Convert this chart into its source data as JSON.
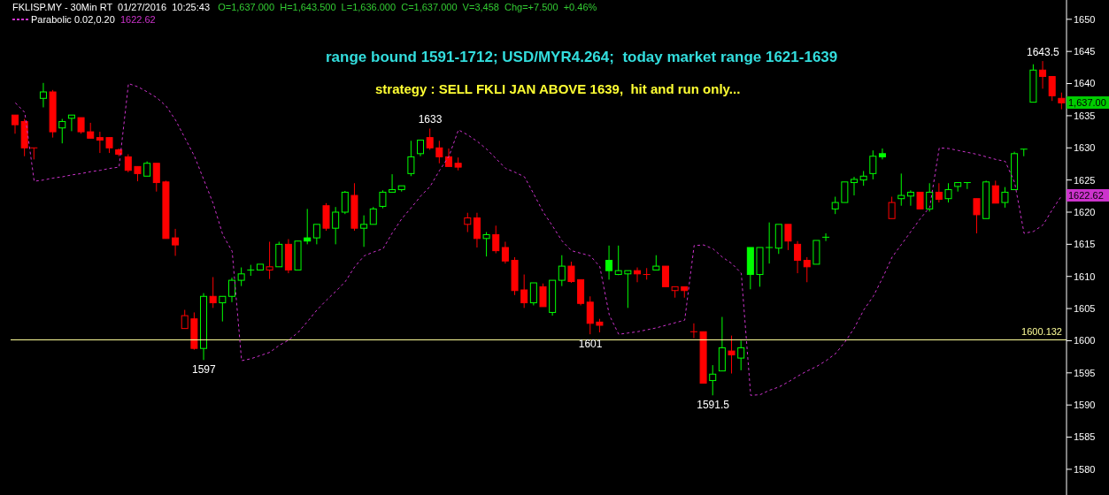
{
  "chart_data": {
    "type": "candlestick",
    "title": "FKLISP.MY - 30Min RT  01/27/2016  10:25:43",
    "subtitle": "O=1,637.000  H=1,643.500  L=1,636.000  C=1,637.000  V=3,458  Chg=+7.500  +0.46%",
    "categories": [
      null,
      null,
      null,
      null,
      null,
      null,
      null,
      null,
      null,
      null,
      null,
      null,
      null,
      null,
      null,
      null,
      null,
      null,
      null,
      null,
      null,
      null,
      null,
      null,
      null,
      null,
      null,
      null,
      null,
      null,
      null,
      null,
      null,
      null,
      null,
      null,
      null,
      null,
      null,
      null,
      null,
      null,
      null,
      null,
      null,
      null,
      null,
      null,
      null,
      null,
      null,
      null,
      null,
      null,
      null,
      null,
      null,
      null,
      null,
      null,
      null,
      null,
      null,
      null,
      null,
      null,
      null,
      null,
      null,
      null,
      null,
      null,
      null,
      null,
      null,
      null,
      null,
      null,
      null,
      null,
      null,
      null,
      null,
      null,
      null,
      null,
      null,
      null,
      null,
      null,
      null,
      null,
      null,
      null,
      null,
      null,
      null,
      null,
      null,
      null,
      null,
      null,
      null,
      null,
      null,
      null,
      null,
      null,
      null,
      null,
      null,
      null
    ],
    "ohlc": [
      [
        1635.1,
        1635.1,
        1632.2,
        1633.6
      ],
      [
        1634.1,
        1634.5,
        1628.7,
        1630.0
      ],
      [
        1630.0,
        1630.0,
        1628.2,
        1630.0
      ],
      [
        1637.7,
        1640.1,
        1636.3,
        1638.7
      ],
      [
        1638.7,
        1639.0,
        1631.6,
        1632.5
      ],
      [
        1633.1,
        1634.5,
        1630.7,
        1634.1
      ],
      [
        1634.6,
        1635.1,
        1632.6,
        1635.1
      ],
      [
        1634.7,
        1634.7,
        1632.2,
        1632.5
      ],
      [
        1632.5,
        1633.9,
        1631.5,
        1631.5
      ],
      [
        1631.6,
        1632.5,
        1629.2,
        1631.2
      ],
      [
        1631.6,
        1631.6,
        1629.2,
        1630.0
      ],
      [
        1629.7,
        1629.9,
        1628.7,
        1629.0
      ],
      [
        1628.6,
        1629.0,
        1626.2,
        1626.5
      ],
      [
        1627.1,
        1627.1,
        1624.8,
        1626.0
      ],
      [
        1625.6,
        1627.9,
        1625.6,
        1627.6
      ],
      [
        1627.6,
        1627.6,
        1623.2,
        1624.6
      ],
      [
        1624.7,
        1624.9,
        1615.9,
        1615.9
      ],
      [
        1616.0,
        1617.4,
        1613.2,
        1614.9
      ],
      [
        1601.9,
        1604.8,
        1601.9,
        1603.9
      ],
      [
        1603.4,
        1604.4,
        1598.6,
        1598.8
      ],
      [
        1598.8,
        1607.4,
        1597.0,
        1606.9
      ],
      [
        1606.9,
        1609.9,
        1605.1,
        1605.9
      ],
      [
        1605.9,
        1606.9,
        1603.0,
        1606.9
      ],
      [
        1606.9,
        1609.8,
        1606.0,
        1609.4
      ],
      [
        1609.4,
        1611.4,
        1608.5,
        1610.4
      ],
      [
        1611.0,
        1611.8,
        1610.1,
        1611.0
      ],
      [
        1611.0,
        1611.9,
        1611.0,
        1611.9
      ],
      [
        1611.0,
        1615.4,
        1609.6,
        1611.5
      ],
      [
        1611.5,
        1615.4,
        1611.5,
        1615.0
      ],
      [
        1615.0,
        1615.8,
        1610.5,
        1611.0
      ],
      [
        1611.0,
        1615.5,
        1611.0,
        1615.5
      ],
      [
        1616.0,
        1620.5,
        1615.0,
        1615.5
      ],
      [
        1616.0,
        1618.1,
        1615.0,
        1618.1
      ],
      [
        1621.0,
        1621.4,
        1617.1,
        1617.5
      ],
      [
        1617.5,
        1620.8,
        1615.0,
        1620.0
      ],
      [
        1620.0,
        1623.3,
        1619.7,
        1623.1
      ],
      [
        1622.6,
        1624.5,
        1617.1,
        1617.5
      ],
      [
        1617.5,
        1619.5,
        1614.6,
        1618.1
      ],
      [
        1618.1,
        1620.8,
        1618.1,
        1620.5
      ],
      [
        1620.9,
        1623.4,
        1620.6,
        1623.1
      ],
      [
        1623.1,
        1625.9,
        1623.1,
        1623.5
      ],
      [
        1623.5,
        1624.1,
        1623.2,
        1624.1
      ],
      [
        1626.0,
        1631.1,
        1625.6,
        1628.6
      ],
      [
        1629.1,
        1631.2,
        1628.7,
        1631.2
      ],
      [
        1631.6,
        1633.0,
        1629.7,
        1630.0
      ],
      [
        1630.0,
        1631.1,
        1627.6,
        1628.6
      ],
      [
        1628.6,
        1629.9,
        1627.1,
        1627.1
      ],
      [
        1627.6,
        1628.5,
        1626.5,
        1627.0
      ],
      [
        1618.1,
        1619.9,
        1616.9,
        1619.1
      ],
      [
        1619.1,
        1619.9,
        1614.5,
        1615.9
      ],
      [
        1615.9,
        1616.9,
        1613.1,
        1616.5
      ],
      [
        1616.5,
        1617.9,
        1613.6,
        1614.0
      ],
      [
        1614.5,
        1615.4,
        1612.0,
        1612.4
      ],
      [
        1612.5,
        1613.0,
        1607.1,
        1607.8
      ],
      [
        1607.9,
        1610.3,
        1605.1,
        1605.9
      ],
      [
        1605.9,
        1609.0,
        1605.5,
        1609.0
      ],
      [
        1608.4,
        1608.9,
        1605.3,
        1605.3
      ],
      [
        1604.4,
        1609.4,
        1603.9,
        1609.4
      ],
      [
        1609.4,
        1613.3,
        1608.5,
        1611.6
      ],
      [
        1611.6,
        1612.3,
        1609.0,
        1609.2
      ],
      [
        1609.5,
        1609.5,
        1605.5,
        1605.8
      ],
      [
        1606.0,
        1606.9,
        1601.0,
        1602.7
      ],
      [
        1602.9,
        1603.4,
        1601.3,
        1602.4
      ],
      [
        1612.5,
        1614.8,
        1609.5,
        1610.9
      ],
      [
        1610.3,
        1614.8,
        1610.2,
        1610.9
      ],
      [
        1610.4,
        1610.9,
        1605.1,
        1610.9
      ],
      [
        1610.9,
        1611.4,
        1609.1,
        1610.4
      ],
      [
        1610.3,
        1611.3,
        1609.5,
        1610.3
      ],
      [
        1611.0,
        1613.3,
        1611.0,
        1611.6
      ],
      [
        1611.6,
        1611.6,
        1608.4,
        1608.4
      ],
      [
        1607.8,
        1608.4,
        1606.7,
        1608.4
      ],
      [
        1608.4,
        1608.4,
        1606.7,
        1607.8
      ],
      [
        1601.4,
        1602.7,
        1600.4,
        1601.4
      ],
      [
        1601.4,
        1601.4,
        1593.4,
        1593.4
      ],
      [
        1593.8,
        1596.2,
        1591.5,
        1594.8
      ],
      [
        1595.3,
        1603.7,
        1595.3,
        1598.9
      ],
      [
        1598.4,
        1600.8,
        1594.9,
        1597.8
      ],
      [
        1597.3,
        1600.0,
        1595.4,
        1598.9
      ],
      [
        1614.5,
        1614.5,
        1608.0,
        1610.3
      ],
      [
        1610.3,
        1614.5,
        1608.4,
        1614.5
      ],
      [
        1614.5,
        1618.4,
        1612.0,
        1614.5
      ],
      [
        1614.4,
        1618.1,
        1613.5,
        1618.1
      ],
      [
        1618.1,
        1618.1,
        1614.1,
        1615.5
      ],
      [
        1615.0,
        1615.5,
        1610.5,
        1612.5
      ],
      [
        1612.5,
        1613.0,
        1609.1,
        1611.5
      ],
      [
        1611.9,
        1615.6,
        1611.9,
        1615.6
      ],
      [
        1616.1,
        1616.7,
        1615.5,
        1616.1
      ],
      [
        1620.5,
        1622.4,
        1619.7,
        1621.5
      ],
      [
        1621.5,
        1624.7,
        1621.5,
        1624.7
      ],
      [
        1624.6,
        1625.5,
        1622.6,
        1625.1
      ],
      [
        1625.0,
        1626.4,
        1624.1,
        1625.6
      ],
      [
        1626.0,
        1629.6,
        1625.1,
        1628.7
      ],
      [
        1629.1,
        1629.9,
        1628.2,
        1628.6
      ],
      [
        1619.0,
        1622.4,
        1619.0,
        1621.5
      ],
      [
        1622.1,
        1626.0,
        1621.0,
        1622.6
      ],
      [
        1622.5,
        1623.4,
        1621.0,
        1623.1
      ],
      [
        1623.1,
        1623.1,
        1620.5,
        1620.5
      ],
      [
        1620.5,
        1624.5,
        1620.1,
        1623.1
      ],
      [
        1623.1,
        1624.5,
        1621.5,
        1622.0
      ],
      [
        1622.1,
        1624.5,
        1621.5,
        1623.5
      ],
      [
        1624.0,
        1624.6,
        1623.2,
        1624.6
      ],
      [
        1624.6,
        1624.6,
        1623.6,
        1624.6
      ],
      [
        1622.1,
        1622.1,
        1616.7,
        1619.6
      ],
      [
        1619.0,
        1624.9,
        1619.0,
        1624.7
      ],
      [
        1624.1,
        1624.9,
        1621.4,
        1621.4
      ],
      [
        1621.5,
        1623.9,
        1620.7,
        1623.1
      ],
      [
        1623.5,
        1629.4,
        1623.5,
        1629.1
      ],
      [
        1629.8,
        1629.8,
        1628.7,
        1629.8
      ],
      [
        1637.1,
        1643.0,
        1637.1,
        1642.1
      ],
      [
        1642.1,
        1643.5,
        1639.2,
        1641.1
      ],
      [
        1641.1,
        1641.1,
        1637.3,
        1638.1
      ],
      [
        1637.7,
        1638.6,
        1636.0,
        1637.0
      ]
    ],
    "colors": [
      "#ff0000",
      "#ff0000",
      "#ff0000",
      "#00ff00",
      "#ff0000",
      "#00ff00",
      "#00ff00",
      "#ff0000",
      "#ff0000",
      "#ff0000",
      "#ff0000",
      "#ff0000",
      "#ff0000",
      "#ff0000",
      "#00ff00",
      "#ff0000",
      "#ff0000",
      "#ff0000",
      "#ff0000",
      "#ff0000",
      "#00ff00",
      "#ff0000",
      "#00ff00",
      "#00ff00",
      "#00ff00",
      "#00ff00",
      "#00ff00",
      "#ff0000",
      "#00ff00",
      "#ff0000",
      "#00ff00",
      "#00ff00",
      "#00ff00",
      "#ff0000",
      "#00ff00",
      "#00ff00",
      "#ff0000",
      "#00ff00",
      "#00ff00",
      "#00ff00",
      "#00ff00",
      "#00ff00",
      "#00ff00",
      "#00ff00",
      "#ff0000",
      "#ff0000",
      "#ff0000",
      "#ff0000",
      "#ff0000",
      "#ff0000",
      "#00ff00",
      "#ff0000",
      "#ff0000",
      "#ff0000",
      "#ff0000",
      "#00ff00",
      "#ff0000",
      "#00ff00",
      "#00ff00",
      "#ff0000",
      "#ff0000",
      "#ff0000",
      "#ff0000",
      "#00ff00",
      "#00ff00",
      "#00ff00",
      "#ff0000",
      "#ff0000",
      "#00ff00",
      "#ff0000",
      "#ff0000",
      "#ff0000",
      "#ff0000",
      "#ff0000",
      "#00ff00",
      "#00ff00",
      "#ff0000",
      "#00ff00",
      "#00ff00",
      "#00ff00",
      "#00ff00",
      "#00ff00",
      "#ff0000",
      "#ff0000",
      "#ff0000",
      "#00ff00",
      "#00ff00",
      "#00ff00",
      "#00ff00",
      "#00ff00",
      "#00ff00",
      "#00ff00",
      "#00ff00",
      "#ff0000",
      "#00ff00",
      "#00ff00",
      "#ff0000",
      "#00ff00",
      "#ff0000",
      "#00ff00",
      "#00ff00",
      "#00ff00",
      "#ff0000",
      "#00ff00",
      "#ff0000",
      "#00ff00",
      "#00ff00",
      "#00ff00",
      "#00ff00",
      "#ff0000",
      "#ff0000",
      "#ff0000"
    ],
    "series": [
      {
        "name": "Parabolic 0.02,0.20",
        "type": "line",
        "color": "#cc33cc",
        "line_style": "dashed",
        "marker": "none",
        "values": [
          1637.0,
          1635.5,
          1624.8,
          1625.0,
          1625.3,
          1625.5,
          1625.8,
          1626.0,
          1626.3,
          1626.5,
          1626.8,
          1627.0,
          1640.0,
          1639.5,
          1638.7,
          1637.8,
          1636.5,
          1634.3,
          1631.5,
          1628.7,
          1625.0,
          1621.3,
          1616.5,
          1613.9,
          1596.9,
          1597.2,
          1597.7,
          1598.2,
          1599.3,
          1600.1,
          1601.3,
          1603.0,
          1604.8,
          1606.3,
          1607.7,
          1609.2,
          1611.5,
          1613.2,
          1613.8,
          1614.3,
          1616.8,
          1619.0,
          1620.7,
          1622.5,
          1624.0,
          1626.5,
          1628.7,
          1632.8,
          1632.0,
          1631.0,
          1629.8,
          1628.3,
          1626.8,
          1626.2,
          1625.5,
          1622.8,
          1620.0,
          1617.8,
          1615.5,
          1614.0,
          1613.6,
          1613.2,
          1611.5,
          1604.0,
          1601.0,
          1601.2,
          1601.4,
          1601.7,
          1602.0,
          1602.4,
          1602.8,
          1603.2,
          1614.8,
          1614.9,
          1614.3,
          1613.0,
          1612.0,
          1610.5,
          1591.5,
          1591.6,
          1592.3,
          1592.8,
          1593.6,
          1594.5,
          1595.3,
          1596.0,
          1596.9,
          1598.0,
          1599.8,
          1602.0,
          1604.8,
          1606.9,
          1609.8,
          1613.0,
          1615.0,
          1617.0,
          1619.0,
          1620.8,
          1630.0,
          1629.9,
          1629.6,
          1629.3,
          1629.0,
          1628.6,
          1628.2,
          1627.9,
          1624.6,
          1616.7,
          1617.0,
          1618.0,
          1620.4,
          1622.6
        ]
      }
    ],
    "ylim": [
      1576,
      1653
    ],
    "yticks": [
      1580,
      1585,
      1590,
      1595,
      1600,
      1605,
      1610,
      1615,
      1620,
      1625,
      1630,
      1635,
      1640,
      1645,
      1650
    ],
    "tick_labels": "y",
    "legend": "top left",
    "ref_lines": [
      {
        "axis": "y",
        "value": 1600.132,
        "label": "1600.132",
        "color": "#ffff99"
      }
    ],
    "annotations": [
      "range bound 1591-1712; USD/MYR4.264;  today market range 1621-1639",
      "strategy : SELL FKLI JAN ABOVE 1639,  hit and run only...",
      "1622.62",
      "1,637.00",
      "1622.62",
      {
        "text": "1643.5",
        "y": 1643.5
      },
      {
        "text": "1633",
        "y": 1633.0
      },
      {
        "text": "1597",
        "y": 1597.0
      },
      {
        "text": "1601",
        "y": 1601.0
      },
      {
        "text": "1591.5",
        "y": 1591.5
      }
    ]
  }
}
